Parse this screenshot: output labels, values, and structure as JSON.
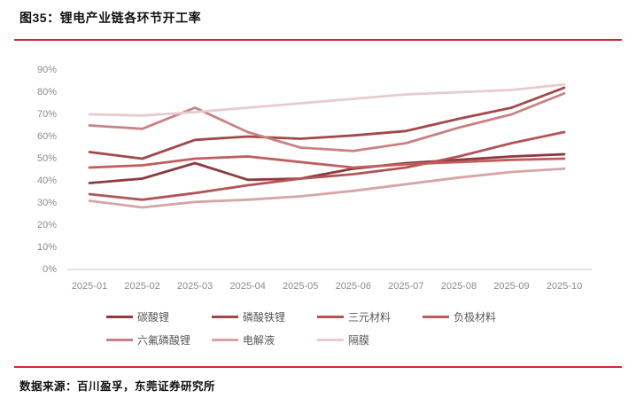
{
  "header": {
    "title": "图35：锂电产业链各环节开工率"
  },
  "footer": {
    "source": "数据来源：百川盈孚，东莞证券研究所"
  },
  "colors": {
    "accent_rule": "#d9262c",
    "axis_text": "#8c8c8c",
    "legend_text": "#595959",
    "axis_line": "#c8c8c8"
  },
  "chart_data": {
    "type": "line",
    "title": "锂电产业链各环节开工率",
    "categories": [
      "2025-01",
      "2025-02",
      "2025-03",
      "2025-04",
      "2025-05",
      "2025-06",
      "2025-07",
      "2025-08",
      "2025-09",
      "2025-10"
    ],
    "series": [
      {
        "name": "碳酸锂",
        "color": "#8e3b3f",
        "values": [
          39,
          41,
          48,
          40.5,
          41,
          45.5,
          48,
          49.5,
          51,
          52
        ]
      },
      {
        "name": "磷酸铁锂",
        "color": "#a2484b",
        "values": [
          53,
          50,
          58.5,
          60,
          59,
          60.5,
          62.5,
          68,
          73,
          82
        ]
      },
      {
        "name": "三元材料",
        "color": "#b25457",
        "values": [
          34,
          31.5,
          34.5,
          38,
          41,
          43,
          46,
          51,
          57,
          62
        ]
      },
      {
        "name": "负极材料",
        "color": "#c05e5e",
        "values": [
          46,
          47,
          50,
          51,
          48.5,
          46,
          47.5,
          48.5,
          49.5,
          50
        ]
      },
      {
        "name": "六氟磷酸锂",
        "color": "#c98282",
        "values": [
          65,
          63.5,
          73,
          62,
          55,
          53.5,
          57,
          64,
          70,
          79.5
        ]
      },
      {
        "name": "电解液",
        "color": "#d7a4a7",
        "values": [
          31,
          28,
          30.5,
          31.5,
          33,
          35.5,
          38.5,
          41.5,
          44,
          45.5
        ]
      },
      {
        "name": "隔膜",
        "color": "#e8cbce",
        "values": [
          70,
          69.5,
          71,
          73,
          75,
          77,
          79,
          80,
          81,
          83.5
        ]
      }
    ],
    "ylabel": "",
    "xlabel": "",
    "ylim": [
      0,
      90
    ],
    "y_tick_values": [
      0,
      10,
      20,
      30,
      40,
      50,
      60,
      70,
      80,
      90
    ],
    "y_tick_suffix": "%",
    "grid": false,
    "legend_position": "bottom"
  }
}
